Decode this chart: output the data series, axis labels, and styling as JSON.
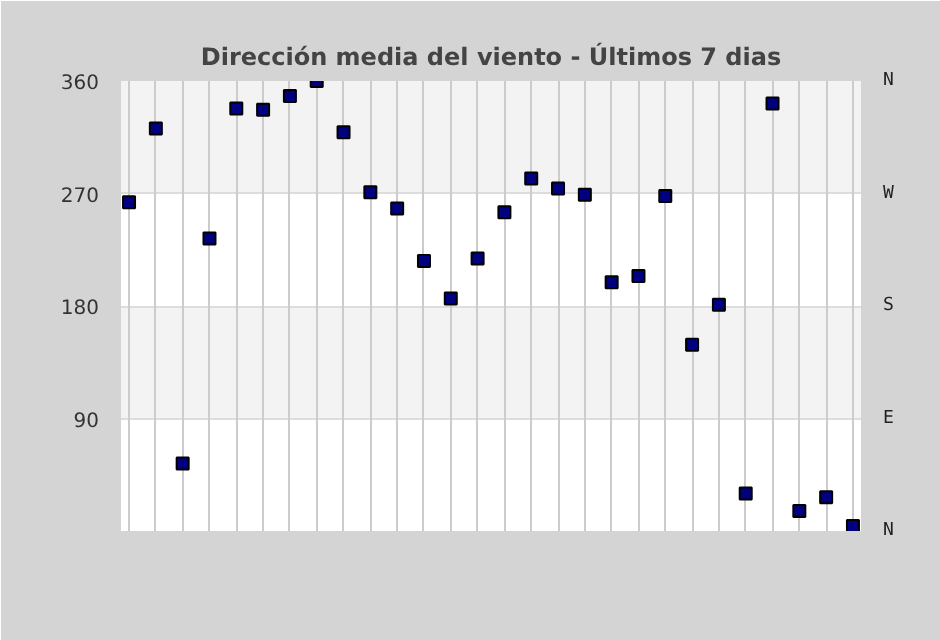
{
  "chart_data": {
    "type": "scatter",
    "title": "Dirección media del viento - Últimos 7 dias",
    "categories": [
      null,
      null,
      null,
      null,
      null,
      null,
      null,
      null,
      null,
      null,
      null,
      null,
      null,
      null,
      null,
      null,
      null,
      null,
      null,
      null,
      null,
      null,
      null,
      null,
      null,
      null,
      null,
      null
    ],
    "series": [
      {
        "color": "#000080",
        "values": [
          263,
          322,
          54,
          234,
          338,
          337,
          348,
          360,
          319,
          271,
          258,
          216,
          186,
          218,
          255,
          282,
          274,
          269,
          199,
          204,
          268,
          149,
          181,
          30,
          342,
          16,
          27,
          4
        ]
      }
    ],
    "ylim": [
      0,
      360
    ],
    "yticks": [
      90,
      180,
      270,
      360
    ],
    "annotations": [
      "N",
      "W",
      "S",
      "E",
      "N"
    ],
    "grid": true,
    "marker": "square"
  }
}
